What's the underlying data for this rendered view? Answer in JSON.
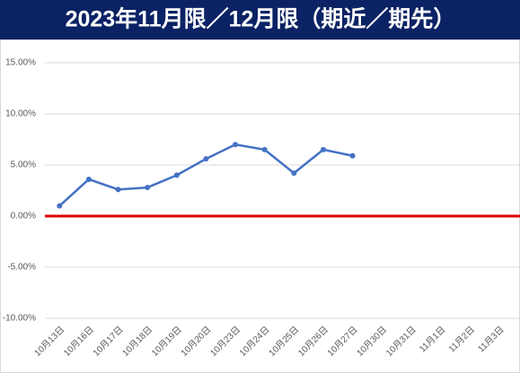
{
  "chart_data": {
    "type": "line",
    "title": "2023年11月限／12月限（期近／期先）",
    "categories": [
      "10月13日",
      "10月16日",
      "10月17日",
      "10月18日",
      "10月19日",
      "10月20日",
      "10月23日",
      "10月24日",
      "10月25日",
      "10月26日",
      "10月27日",
      "10月30日",
      "10月31日",
      "11月1日",
      "11月2日",
      "11月3日"
    ],
    "series": [
      {
        "color": "#4472c4",
        "values": [
          1.0,
          3.6,
          2.6,
          2.8,
          4.0,
          5.6,
          7.0,
          6.5,
          4.2,
          6.5,
          5.9,
          null,
          null,
          null,
          null,
          null
        ]
      }
    ],
    "ylim": [
      -10,
      15
    ],
    "yticks": [
      {
        "value": -10,
        "label": "-10.00%"
      },
      {
        "value": -5,
        "label": "-5.00%"
      },
      {
        "value": 0,
        "label": "0.00%"
      },
      {
        "value": 5,
        "label": "5.00%"
      },
      {
        "value": 10,
        "label": "10.00%"
      },
      {
        "value": 15,
        "label": "15.00%"
      }
    ],
    "grid": true,
    "zero_line_color": "#e00000"
  }
}
